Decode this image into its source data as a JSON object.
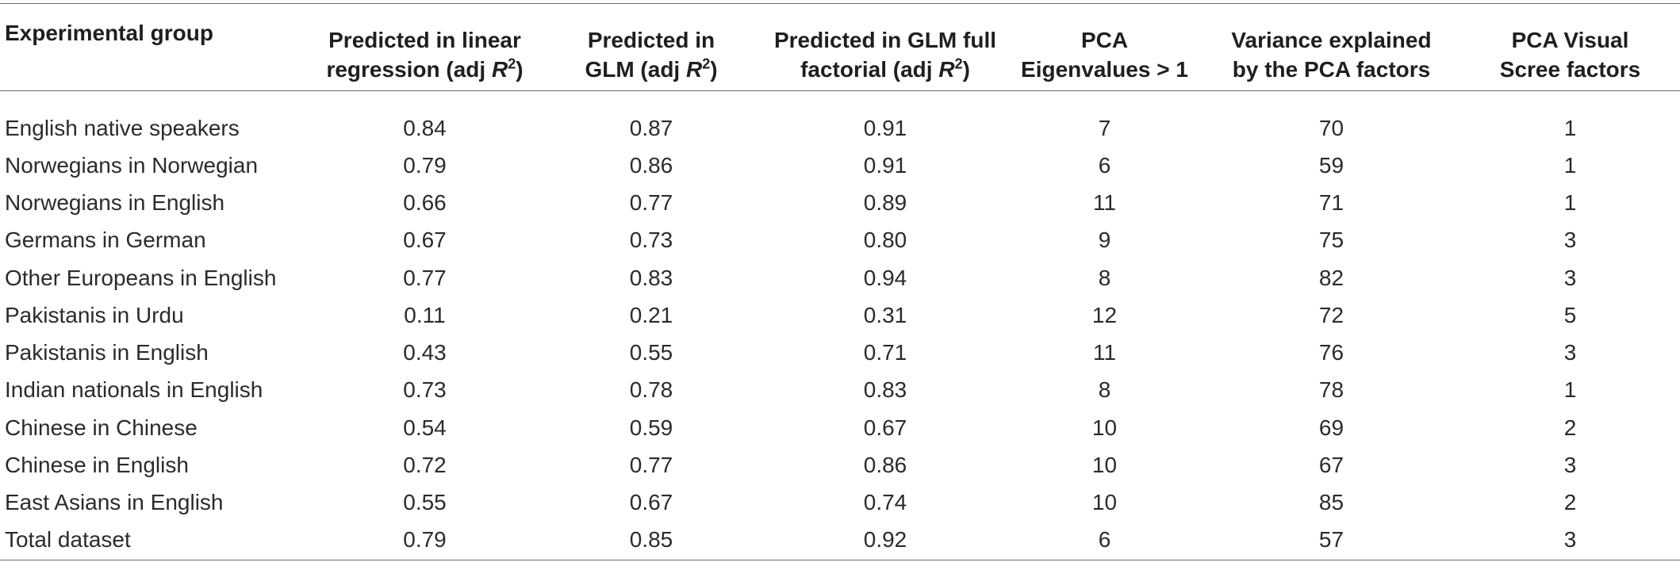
{
  "table": {
    "headers": [
      {
        "lines": [
          "Experimental group"
        ]
      },
      {
        "line1": "Predicted in linear",
        "line2_pre": "regression (adj ",
        "line2_var": "R",
        "line2_sup": "2",
        "line2_post": ")"
      },
      {
        "line1": "Predicted in",
        "line2_pre": "GLM (adj ",
        "line2_var": "R",
        "line2_sup": "2",
        "line2_post": ")"
      },
      {
        "line1": "Predicted in GLM full",
        "line2_pre": "factorial (adj ",
        "line2_var": "R",
        "line2_sup": "2",
        "line2_post": ")"
      },
      {
        "line1": "PCA",
        "line2": "Eigenvalues > 1"
      },
      {
        "line1": "Variance explained",
        "line2": "by the PCA factors"
      },
      {
        "line1": "PCA Visual",
        "line2": "Scree factors"
      }
    ],
    "rows": [
      [
        "English native speakers",
        "0.84",
        "0.87",
        "0.91",
        "7",
        "70",
        "1"
      ],
      [
        "Norwegians in Norwegian",
        "0.79",
        "0.86",
        "0.91",
        "6",
        "59",
        "1"
      ],
      [
        "Norwegians in English",
        "0.66",
        "0.77",
        "0.89",
        "11",
        "71",
        "1"
      ],
      [
        "Germans in German",
        "0.67",
        "0.73",
        "0.80",
        "9",
        "75",
        "3"
      ],
      [
        "Other Europeans in English",
        "0.77",
        "0.83",
        "0.94",
        "8",
        "82",
        "3"
      ],
      [
        "Pakistanis in Urdu",
        "0.11",
        "0.21",
        "0.31",
        "12",
        "72",
        "5"
      ],
      [
        "Pakistanis in English",
        "0.43",
        "0.55",
        "0.71",
        "11",
        "76",
        "3"
      ],
      [
        "Indian nationals in English",
        "0.73",
        "0.78",
        "0.83",
        "8",
        "78",
        "1"
      ],
      [
        "Chinese in Chinese",
        "0.54",
        "0.59",
        "0.67",
        "10",
        "69",
        "2"
      ],
      [
        "Chinese in English",
        "0.72",
        "0.77",
        "0.86",
        "10",
        "67",
        "3"
      ],
      [
        "East Asians in English",
        "0.55",
        "0.67",
        "0.74",
        "10",
        "85",
        "2"
      ],
      [
        "Total dataset",
        "0.79",
        "0.85",
        "0.92",
        "6",
        "57",
        "3"
      ]
    ]
  }
}
